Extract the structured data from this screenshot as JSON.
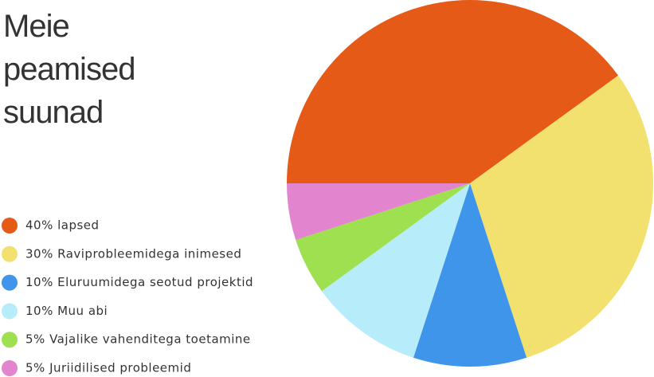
{
  "chart_data": {
    "type": "pie",
    "title": "Meie peamised suunad",
    "categories": [
      "40% lapsed",
      "30% Raviprobleemidega inimesed",
      "10% Eluruumidega seotud projektid",
      "10% Muu abi",
      "5% Vajalike vahenditega toetamine",
      "5% Juriidilised probleemid"
    ],
    "values": [
      40,
      30,
      10,
      10,
      5,
      5
    ],
    "colors": [
      "#e55a17",
      "#f3e16f",
      "#3f95e9",
      "#b7ecfa",
      "#9ee04f",
      "#e284ce"
    ]
  }
}
